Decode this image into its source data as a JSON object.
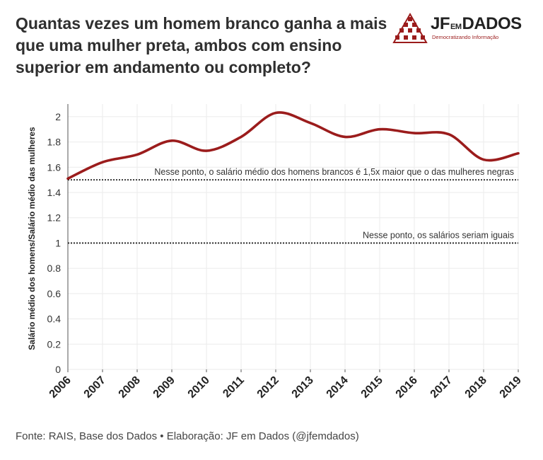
{
  "title_lines": [
    "Quantas vezes um homem branco ganha a mais",
    "que uma mulher preta, ambos com ensino",
    "superior em andamento ou completo?"
  ],
  "logo": {
    "jf": "JF",
    "em": "EM",
    "dados": "DADOS",
    "tagline": "Democratizando Informação"
  },
  "source": "Fonte: RAIS, Base dos Dados • Elaboração: JF em Dados (@jfemdados)",
  "chart_data": {
    "type": "line",
    "x": [
      2006,
      2007,
      2008,
      2009,
      2010,
      2011,
      2012,
      2013,
      2014,
      2015,
      2016,
      2017,
      2018,
      2019
    ],
    "series": [
      {
        "values": [
          1.51,
          1.64,
          1.7,
          1.81,
          1.73,
          1.84,
          2.03,
          1.95,
          1.84,
          1.9,
          1.87,
          1.86,
          1.66,
          1.71
        ],
        "color": "#9b1c1c"
      }
    ],
    "ylabel": "Salário médio dos homens/Salário médio das mulheres",
    "xlabel": "",
    "ylim": [
      0,
      2.1
    ],
    "yticks": [
      0,
      0.2,
      0.4,
      0.6,
      0.8,
      1,
      1.2,
      1.4,
      1.6,
      1.8,
      2
    ],
    "ytick_labels": [
      "0",
      "0.2",
      "0.4",
      "0.6",
      "0.8",
      "1",
      "1.2",
      "1.4",
      "1.6",
      "1.8",
      "2"
    ],
    "grid": true,
    "reference_lines": [
      {
        "y": 1.5,
        "label": "Nesse ponto, o salário médio dos homens brancos é 1,5x maior que o das mulheres negras"
      },
      {
        "y": 1.0,
        "label": "Nesse ponto, os salários seriam iguais"
      }
    ]
  }
}
